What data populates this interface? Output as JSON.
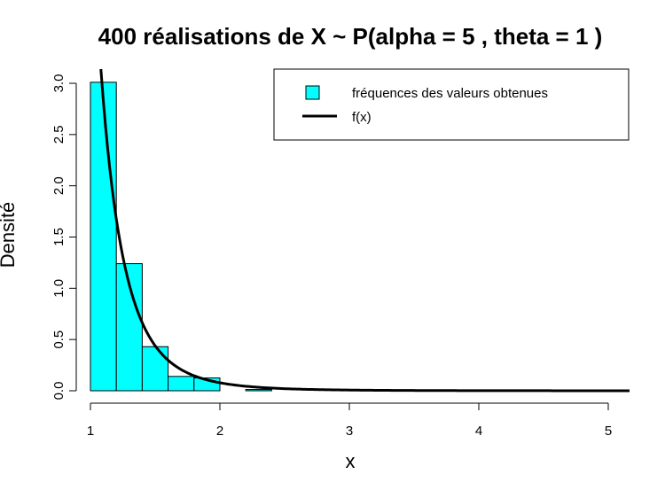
{
  "chart_data": {
    "type": "bar",
    "title": "400  réalisations de X ~ P(alpha =  5 , theta =  1 )",
    "xlabel": "x",
    "ylabel": "Densité",
    "xlim": [
      1,
      5.2
    ],
    "ylim": [
      0,
      3.2
    ],
    "x_ticks": [
      "1",
      "2",
      "3",
      "4",
      "5"
    ],
    "y_ticks": [
      "0.0",
      "0.5",
      "1.0",
      "1.5",
      "2.0",
      "2.5",
      "3.0"
    ],
    "histogram": {
      "bin_width": 0.2,
      "bins": [
        {
          "start": 1.0,
          "end": 1.2,
          "density": 3.01
        },
        {
          "start": 1.2,
          "end": 1.4,
          "density": 1.24
        },
        {
          "start": 1.4,
          "end": 1.6,
          "density": 0.43
        },
        {
          "start": 1.6,
          "end": 1.8,
          "density": 0.14
        },
        {
          "start": 1.8,
          "end": 2.0,
          "density": 0.125
        },
        {
          "start": 2.0,
          "end": 2.2,
          "density": 0.0
        },
        {
          "start": 2.2,
          "end": 2.4,
          "density": 0.0125
        },
        {
          "start": 2.4,
          "end": 2.6,
          "density": 0.0
        },
        {
          "start": 2.6,
          "end": 2.8,
          "density": 0.0
        },
        {
          "start": 2.8,
          "end": 3.0,
          "density": 0.0
        },
        {
          "start": 3.0,
          "end": 3.2,
          "density": 0.0
        },
        {
          "start": 3.2,
          "end": 3.4,
          "density": 0.0
        },
        {
          "start": 3.4,
          "end": 3.6,
          "density": 0.0
        },
        {
          "start": 3.6,
          "end": 3.8,
          "density": 0.0
        },
        {
          "start": 3.8,
          "end": 4.0,
          "density": 0.0
        },
        {
          "start": 4.0,
          "end": 4.2,
          "density": 0.0
        },
        {
          "start": 4.2,
          "end": 4.4,
          "density": 0.0
        },
        {
          "start": 4.4,
          "end": 4.6,
          "density": 0.0
        },
        {
          "start": 4.6,
          "end": 4.8,
          "density": 0.0
        },
        {
          "start": 4.8,
          "end": 5.0,
          "density": 0.0
        }
      ],
      "fill_color": "#00ffff"
    },
    "density_curve": {
      "name": "f(x)",
      "alpha": 5,
      "theta": 1,
      "color": "#000000"
    },
    "legend": {
      "position": "top-right",
      "entries": [
        "fréquences des valeurs obtenues",
        "f(x)"
      ]
    },
    "grid": false
  }
}
